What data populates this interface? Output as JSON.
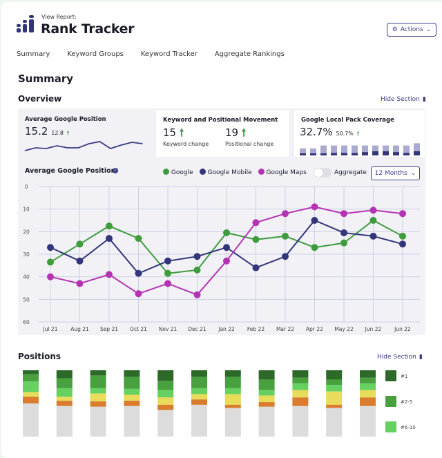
{
  "header": {
    "subtitle": "View Report:",
    "title": "Rank Tracker",
    "actions_label": "Actions"
  },
  "tabs": [
    "Summary",
    "Keyword Groups",
    "Keyword Tracker",
    "Aggregate Rankings"
  ],
  "page_title": "Summary",
  "overview": {
    "title": "Overview",
    "hide_label": "Hide Section",
    "cards": {
      "avg_position": {
        "title": "Average Google Position",
        "value": "15.2",
        "delta": "12.8"
      },
      "movement": {
        "title": "Keyword and Positional Movement",
        "keyword_value": "15",
        "keyword_label": "Keyword change",
        "positional_value": "19",
        "positional_label": "Positional change"
      },
      "local_pack": {
        "title": "Google Local Pack Coverage",
        "value": "32.7%",
        "delta": "50.7%"
      }
    }
  },
  "chart_controls": {
    "aggregate_label": "Aggregate",
    "aggregate_on": false,
    "range_label": "12 Months"
  },
  "positions": {
    "title": "Positions",
    "hide_label": "Hide Section"
  },
  "colors": {
    "brand": "#3a3b84",
    "google": "#3e9c3c",
    "mobile": "#33357a",
    "maps": "#b433b4"
  },
  "chart_data": [
    {
      "type": "line",
      "title": "Average Google Position",
      "categories": [
        "Jul 21",
        "Aug 21",
        "Sep 21",
        "Oct 21",
        "Nov 21",
        "Dec 21",
        "Jan 22",
        "Feb 22",
        "Mar 22",
        "Apr 22",
        "May 22",
        "Jun 22",
        "Jun 22"
      ],
      "ylim": [
        0,
        60
      ],
      "yticks": [
        0,
        10,
        20,
        30,
        40,
        50,
        60
      ],
      "y_inverted": true,
      "grid": true,
      "legend": "top",
      "series": [
        {
          "name": "Google",
          "color": "#3e9c3c",
          "values": [
            33.5,
            25.5,
            17.5,
            23,
            38.5,
            37,
            20.5,
            23.5,
            22,
            27,
            25,
            15,
            22
          ]
        },
        {
          "name": "Google Mobile",
          "color": "#33357a",
          "values": [
            27,
            33,
            23,
            38.5,
            33,
            31,
            27,
            36,
            31,
            15,
            20.5,
            22,
            25.5
          ]
        },
        {
          "name": "Google Maps",
          "color": "#b433b4",
          "values": [
            40,
            43,
            39,
            47.5,
            43,
            48,
            33,
            16,
            12,
            9,
            12,
            10.5,
            12
          ]
        }
      ]
    },
    {
      "type": "line",
      "title": "",
      "values": [
        40,
        36,
        37,
        33,
        36,
        36,
        30,
        27,
        37,
        32,
        28,
        30
      ]
    },
    {
      "type": "bar",
      "title": "",
      "values": [
        32,
        32,
        45,
        45,
        45,
        45,
        45,
        45,
        45,
        45,
        45,
        55
      ],
      "highlight": [
        5,
        5,
        5,
        6,
        6,
        6,
        8,
        10,
        10,
        8,
        6,
        10
      ]
    },
    {
      "type": "bar",
      "stacked": true,
      "title": "Positions",
      "legend": "right",
      "series": [
        {
          "name": "#1",
          "color": "#2d6a2a",
          "values": [
            6,
            12,
            8,
            10,
            16,
            10,
            10,
            14,
            11,
            14,
            11
          ]
        },
        {
          "name": "#2-5",
          "color": "#48a03f",
          "values": [
            11,
            15,
            19,
            18,
            14,
            17,
            17,
            16,
            9,
            8,
            9
          ]
        },
        {
          "name": "#6-10",
          "color": "#66d060",
          "values": [
            16,
            13,
            8,
            9,
            11,
            9,
            9,
            8,
            10,
            10,
            10
          ]
        },
        {
          "color": "#e8dc5a",
          "values": [
            7,
            6,
            12,
            9,
            11,
            8,
            16,
            10,
            11,
            20,
            11
          ]
        },
        {
          "color": "#d97c2e",
          "values": [
            10,
            8,
            8,
            8,
            8,
            8,
            5,
            7,
            13,
            5,
            13
          ]
        },
        {
          "color": "#dcdcdc",
          "values": [
            50,
            46,
            45,
            46,
            40,
            48,
            43,
            45,
            46,
            43,
            46
          ]
        }
      ]
    }
  ]
}
